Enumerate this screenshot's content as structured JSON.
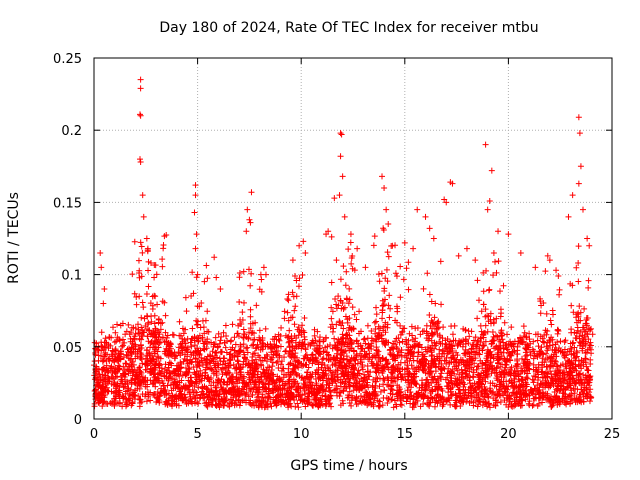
{
  "chart_data": {
    "type": "scatter",
    "title": "Day 180 of 2024, Rate Of TEC Index for receiver mtbu",
    "xlabel": "GPS time / hours",
    "ylabel": "ROTI / TECUs",
    "xlim": [
      0,
      25
    ],
    "ylim": [
      0,
      0.25
    ],
    "xticks": [
      0,
      5,
      10,
      15,
      20,
      25
    ],
    "xtick_labels": [
      "0",
      "5",
      "10",
      "15",
      "20",
      "25"
    ],
    "yticks": [
      0,
      0.05,
      0.1,
      0.15,
      0.2,
      0.25
    ],
    "ytick_labels": [
      "0",
      "0.05",
      "0.1",
      "0.15",
      "0.2",
      "0.25"
    ],
    "grid": true,
    "marker": "+",
    "series_color": "#ff0000",
    "series": [
      {
        "name": "ROTI",
        "x": [
          2.25,
          2.25,
          2.22,
          2.25,
          2.22,
          2.25,
          2.35,
          2.4,
          2.55,
          2.6,
          2.75,
          2.9,
          2.95,
          0.3,
          0.35,
          0.5,
          0.45,
          4.9,
          4.9,
          4.85,
          4.95,
          4.9,
          5.0,
          5.8,
          5.9,
          6.1,
          7.4,
          7.5,
          7.35,
          7.6,
          7.55,
          8.2,
          8.3,
          9.6,
          9.7,
          9.9,
          10.1,
          10.2,
          11.2,
          11.3,
          11.6,
          11.7,
          11.9,
          11.95,
          11.9,
          12.0,
          11.85,
          12.1,
          12.4,
          12.7,
          13.1,
          13.9,
          14.0,
          14.1,
          14.2,
          14.4,
          15.0,
          15.4,
          15.6,
          16.0,
          16.2,
          16.4,
          16.9,
          17.0,
          17.2,
          17.3,
          17.6,
          18.0,
          18.4,
          18.9,
          19.0,
          19.1,
          19.2,
          19.3,
          19.5,
          20.0,
          20.6,
          21.3,
          21.9,
          22.0,
          22.3,
          22.9,
          23.1,
          23.4,
          23.45,
          23.5,
          23.4,
          23.6,
          23.8,
          23.9
        ],
        "y": [
          0.235,
          0.229,
          0.211,
          0.21,
          0.18,
          0.178,
          0.155,
          0.14,
          0.125,
          0.118,
          0.108,
          0.098,
          0.085,
          0.115,
          0.105,
          0.09,
          0.08,
          0.162,
          0.155,
          0.143,
          0.128,
          0.118,
          0.1,
          0.112,
          0.098,
          0.09,
          0.145,
          0.138,
          0.13,
          0.157,
          0.136,
          0.105,
          0.1,
          0.11,
          0.099,
          0.12,
          0.123,
          0.115,
          0.128,
          0.13,
          0.153,
          0.11,
          0.198,
          0.197,
          0.182,
          0.168,
          0.155,
          0.14,
          0.128,
          0.118,
          0.105,
          0.168,
          0.16,
          0.145,
          0.135,
          0.12,
          0.122,
          0.118,
          0.145,
          0.14,
          0.132,
          0.125,
          0.152,
          0.15,
          0.164,
          0.163,
          0.113,
          0.118,
          0.11,
          0.19,
          0.145,
          0.151,
          0.172,
          0.115,
          0.13,
          0.128,
          0.115,
          0.105,
          0.113,
          0.11,
          0.103,
          0.14,
          0.155,
          0.209,
          0.198,
          0.175,
          0.163,
          0.145,
          0.125,
          0.12
        ]
      }
    ]
  }
}
